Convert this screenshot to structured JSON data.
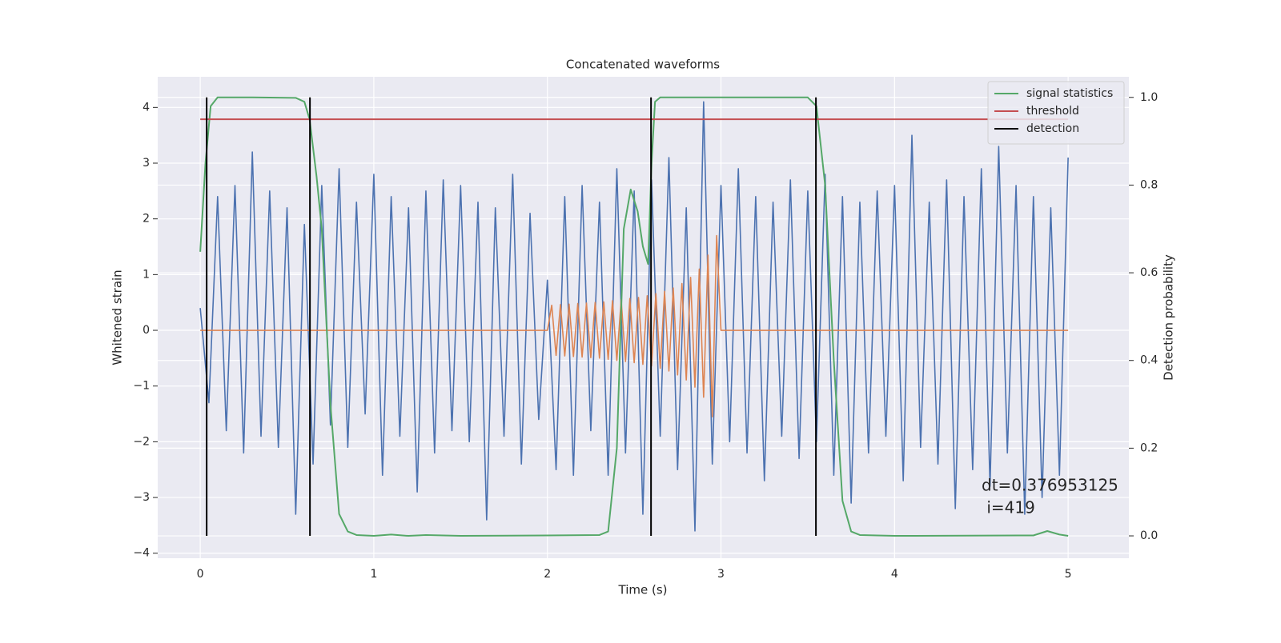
{
  "chart_data": {
    "type": "line",
    "title": "Concatenated waveforms",
    "xlabel": "Time (s)",
    "ylabel": "Whitened strain",
    "y2label": "Detection probability",
    "xlim": [
      -0.245,
      5.35
    ],
    "ylim": [
      -4.09,
      4.55
    ],
    "y2lim": [
      -0.051,
      1.047
    ],
    "xticks": [
      0,
      1,
      2,
      3,
      4,
      5
    ],
    "yticks": [
      {
        "value": -4,
        "label": "−4"
      },
      {
        "value": -3,
        "label": "−3"
      },
      {
        "value": -2,
        "label": "−2"
      },
      {
        "value": -1,
        "label": "−1"
      },
      0,
      1,
      2,
      3,
      4
    ],
    "y2ticks": [
      {
        "value": 0,
        "label": "0.0"
      },
      0.2,
      0.4,
      0.6,
      0.8,
      {
        "value": 1,
        "label": "1.0"
      }
    ],
    "grid": true,
    "legend": "upper right",
    "series": [
      {
        "color": "#4c72b0",
        "x": [
          0,
          0.05,
          0.1,
          0.15,
          0.2,
          0.25,
          0.3,
          0.35,
          0.4,
          0.45,
          0.5,
          0.55,
          0.6,
          0.65,
          0.7,
          0.75,
          0.8,
          0.85,
          0.9,
          0.95,
          1,
          1.05,
          1.1,
          1.15,
          1.2,
          1.25,
          1.3,
          1.35,
          1.4,
          1.45,
          1.5,
          1.55,
          1.6,
          1.65,
          1.7,
          1.75,
          1.8,
          1.85,
          1.9,
          1.95,
          2,
          2.05,
          2.1,
          2.15,
          2.2,
          2.25,
          2.3,
          2.35,
          2.4,
          2.45,
          2.5,
          2.55,
          2.6,
          2.65,
          2.7,
          2.75,
          2.8,
          2.85,
          2.9,
          2.95,
          3,
          3.05,
          3.1,
          3.15,
          3.2,
          3.25,
          3.3,
          3.35,
          3.4,
          3.45,
          3.5,
          3.55,
          3.6,
          3.65,
          3.7,
          3.75,
          3.8,
          3.85,
          3.9,
          3.95,
          4,
          4.05,
          4.1,
          4.15,
          4.2,
          4.25,
          4.3,
          4.35,
          4.4,
          4.45,
          4.5,
          4.55,
          4.6,
          4.65,
          4.7,
          4.75,
          4.8,
          4.85,
          4.9,
          4.95,
          5
        ],
        "values": [
          0.4,
          -1.3,
          2.4,
          -1.8,
          2.6,
          -2.2,
          3.2,
          -1.9,
          2.5,
          -2.1,
          2.2,
          -3.3,
          1.9,
          -2.4,
          2.6,
          -1.7,
          2.9,
          -2.1,
          2.3,
          -1.5,
          2.8,
          -2.6,
          2.4,
          -1.9,
          2.2,
          -2.9,
          2.5,
          -2.2,
          2.7,
          -1.8,
          2.6,
          -2.0,
          2.3,
          -3.4,
          2.2,
          -1.9,
          2.8,
          -2.4,
          2.1,
          -1.6,
          0.9,
          -2.5,
          2.4,
          -2.6,
          2.6,
          -1.8,
          2.3,
          -2.6,
          2.9,
          -2.2,
          2.5,
          -3.3,
          2.7,
          -1.9,
          3.1,
          -2.5,
          2.2,
          -3.6,
          4.1,
          -2.4,
          2.6,
          -2.0,
          2.9,
          -2.2,
          2.4,
          -2.7,
          2.3,
          -1.9,
          2.7,
          -2.3,
          2.5,
          -2.0,
          2.8,
          -2.6,
          2.4,
          -3.1,
          2.3,
          -2.2,
          2.5,
          -1.9,
          2.6,
          -2.7,
          3.5,
          -2.1,
          2.3,
          -2.4,
          2.7,
          -3.2,
          2.4,
          -2.5,
          2.9,
          -2.8,
          3.3,
          -2.2,
          2.6,
          -3.3,
          2.4,
          -3.0,
          2.2,
          -2.6,
          3.1
        ]
      },
      {
        "color": "#dd8452",
        "x": [
          0,
          2,
          2.025,
          2.05,
          2.075,
          2.1,
          2.125,
          2.15,
          2.175,
          2.2,
          2.225,
          2.25,
          2.275,
          2.3,
          2.325,
          2.35,
          2.375,
          2.4,
          2.425,
          2.45,
          2.475,
          2.5,
          2.525,
          2.55,
          2.575,
          2.6,
          2.625,
          2.65,
          2.675,
          2.7,
          2.725,
          2.75,
          2.775,
          2.8,
          2.825,
          2.85,
          2.875,
          2.9,
          2.925,
          2.95,
          2.975,
          3,
          5
        ],
        "values": [
          0,
          0,
          0.45,
          -0.45,
          0.46,
          -0.46,
          0.47,
          -0.47,
          0.48,
          -0.48,
          0.49,
          -0.49,
          0.5,
          -0.5,
          0.51,
          -0.52,
          0.53,
          -0.54,
          0.55,
          -0.56,
          0.57,
          -0.58,
          0.59,
          -0.61,
          0.62,
          -0.64,
          0.66,
          -0.68,
          0.7,
          -0.73,
          0.76,
          -0.8,
          0.84,
          -0.89,
          0.95,
          -1.02,
          1.1,
          -1.2,
          1.35,
          -1.55,
          1.7,
          0,
          0
        ]
      },
      {
        "name": "signal statistics",
        "color": "#55a868",
        "axis": "y2",
        "x": [
          0,
          0.03,
          0.06,
          0.1,
          0.3,
          0.55,
          0.6,
          0.63,
          0.67,
          0.7,
          0.75,
          0.8,
          0.85,
          0.9,
          1,
          1.1,
          1.2,
          1.3,
          1.5,
          2,
          2.3,
          2.35,
          2.4,
          2.44,
          2.48,
          2.52,
          2.55,
          2.58,
          2.6,
          2.62,
          2.65,
          3,
          3.5,
          3.55,
          3.6,
          3.65,
          3.7,
          3.75,
          3.8,
          4,
          4.8,
          4.88,
          4.95,
          5
        ],
        "values": [
          0.648,
          0.85,
          0.98,
          1,
          1,
          0.999,
          0.99,
          0.95,
          0.82,
          0.7,
          0.3,
          0.05,
          0.01,
          0.002,
          0,
          0.003,
          0,
          0.002,
          0,
          0.001,
          0.002,
          0.01,
          0.2,
          0.7,
          0.79,
          0.74,
          0.66,
          0.62,
          0.85,
          0.99,
          1,
          1,
          1,
          0.98,
          0.8,
          0.4,
          0.08,
          0.01,
          0.002,
          0,
          0.001,
          0.011,
          0.003,
          0
        ]
      },
      {
        "name": "threshold",
        "color": "#c44e52",
        "axis": "y2",
        "x": [
          0,
          5
        ],
        "values": [
          0.95,
          0.95
        ]
      },
      {
        "name": "detection",
        "color": "#000000",
        "axis": "y2",
        "kind": "vlines",
        "x": [
          0.037,
          0.632,
          2.597,
          3.547
        ],
        "ymin": 0,
        "ymax": 1
      }
    ],
    "annotation": [
      "dt=0.376953125",
      " i=419"
    ]
  }
}
